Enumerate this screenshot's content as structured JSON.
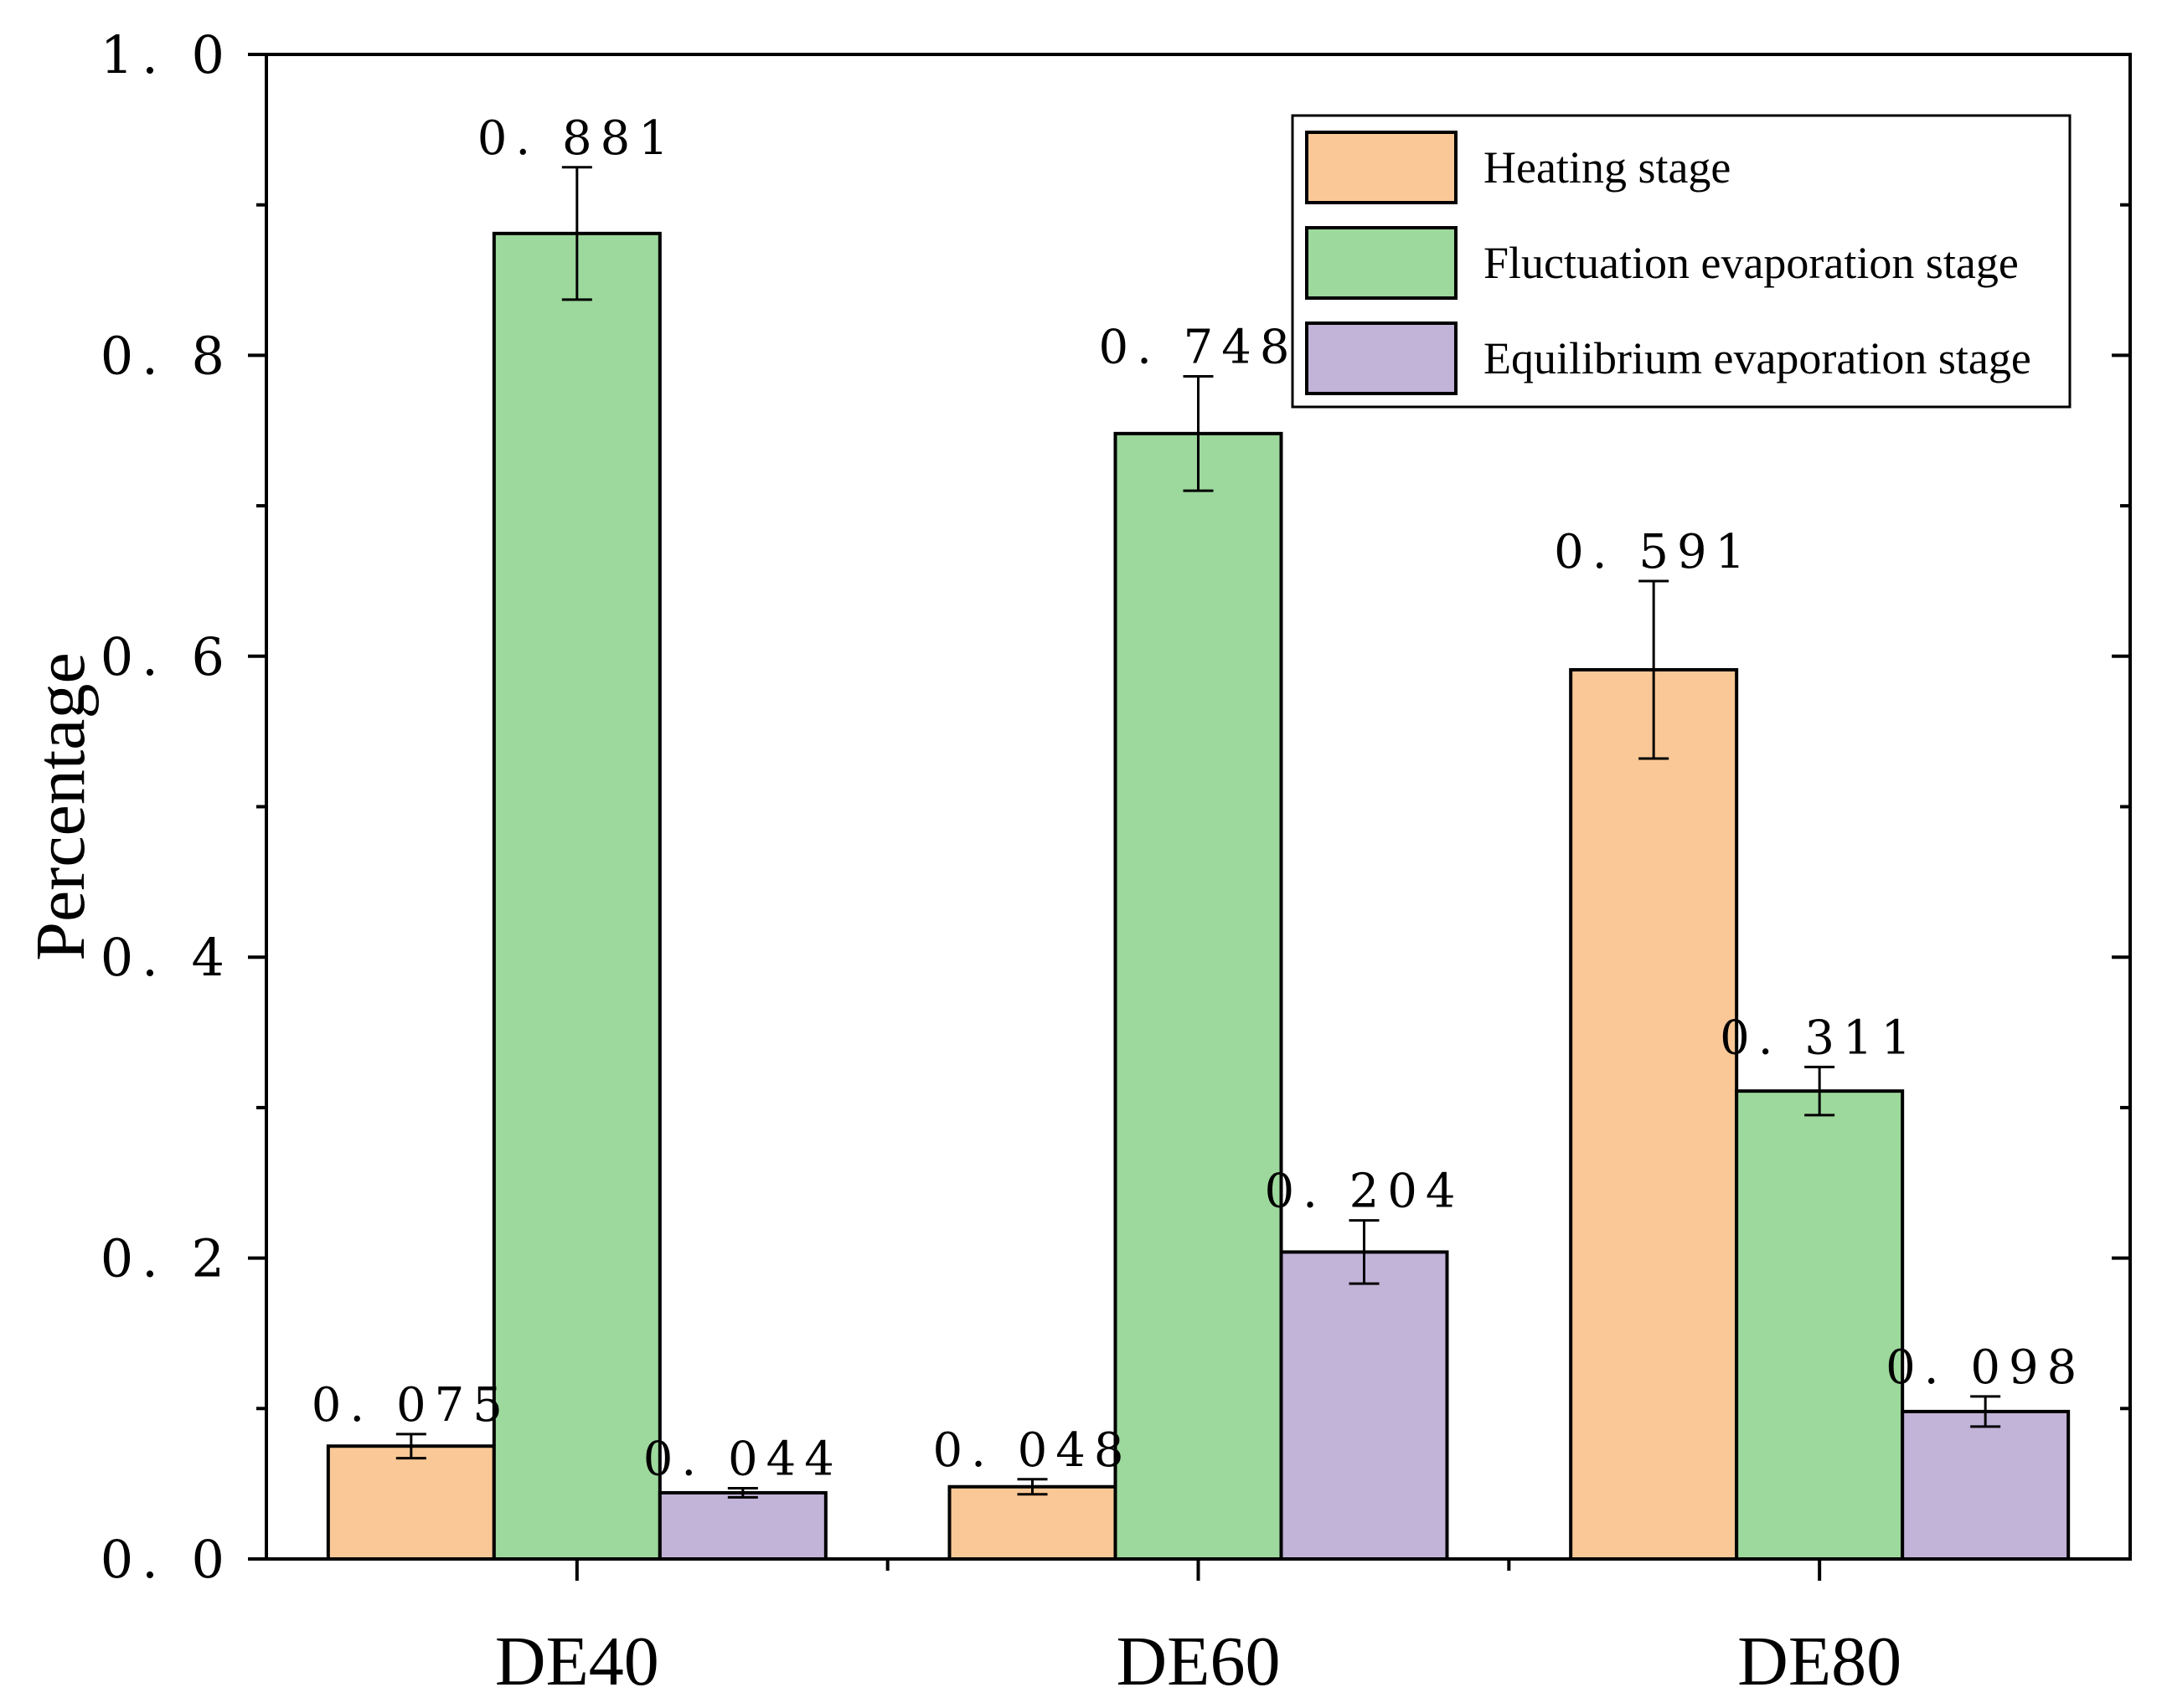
{
  "chart_data": {
    "type": "bar",
    "title": "",
    "xlabel": "",
    "ylabel": "Percentage",
    "ylim": [
      0,
      1.0
    ],
    "yticks": [
      {
        "value": 0.0,
        "label": "0. 0"
      },
      {
        "value": 0.2,
        "label": "0. 2"
      },
      {
        "value": 0.4,
        "label": "0. 4"
      },
      {
        "value": 0.6,
        "label": "0. 6"
      },
      {
        "value": 0.8,
        "label": "0. 8"
      },
      {
        "value": 1.0,
        "label": "1. 0"
      }
    ],
    "categories": [
      "DE40",
      "DE60",
      "DE80"
    ],
    "legend_position": "top-right",
    "series": [
      {
        "name": "Heating stage",
        "color": "#FAC896",
        "values": [
          0.075,
          0.048,
          0.591
        ],
        "labels": [
          "0. 075",
          "0. 048",
          "0. 591"
        ],
        "errors": [
          0.008,
          0.005,
          0.059
        ]
      },
      {
        "name": "Fluctuation evaporation stage",
        "color": "#9DD89C",
        "values": [
          0.881,
          0.748,
          0.311
        ],
        "labels": [
          "0. 881",
          "0. 748",
          "0. 311"
        ],
        "errors": [
          0.044,
          0.038,
          0.016
        ]
      },
      {
        "name": "Equilibrium evaporation stage",
        "color": "#C2B3D8",
        "values": [
          0.044,
          0.204,
          0.098
        ],
        "labels": [
          "0. 044",
          "0. 204",
          "0. 098"
        ],
        "errors": [
          0.003,
          0.021,
          0.01
        ]
      }
    ]
  }
}
